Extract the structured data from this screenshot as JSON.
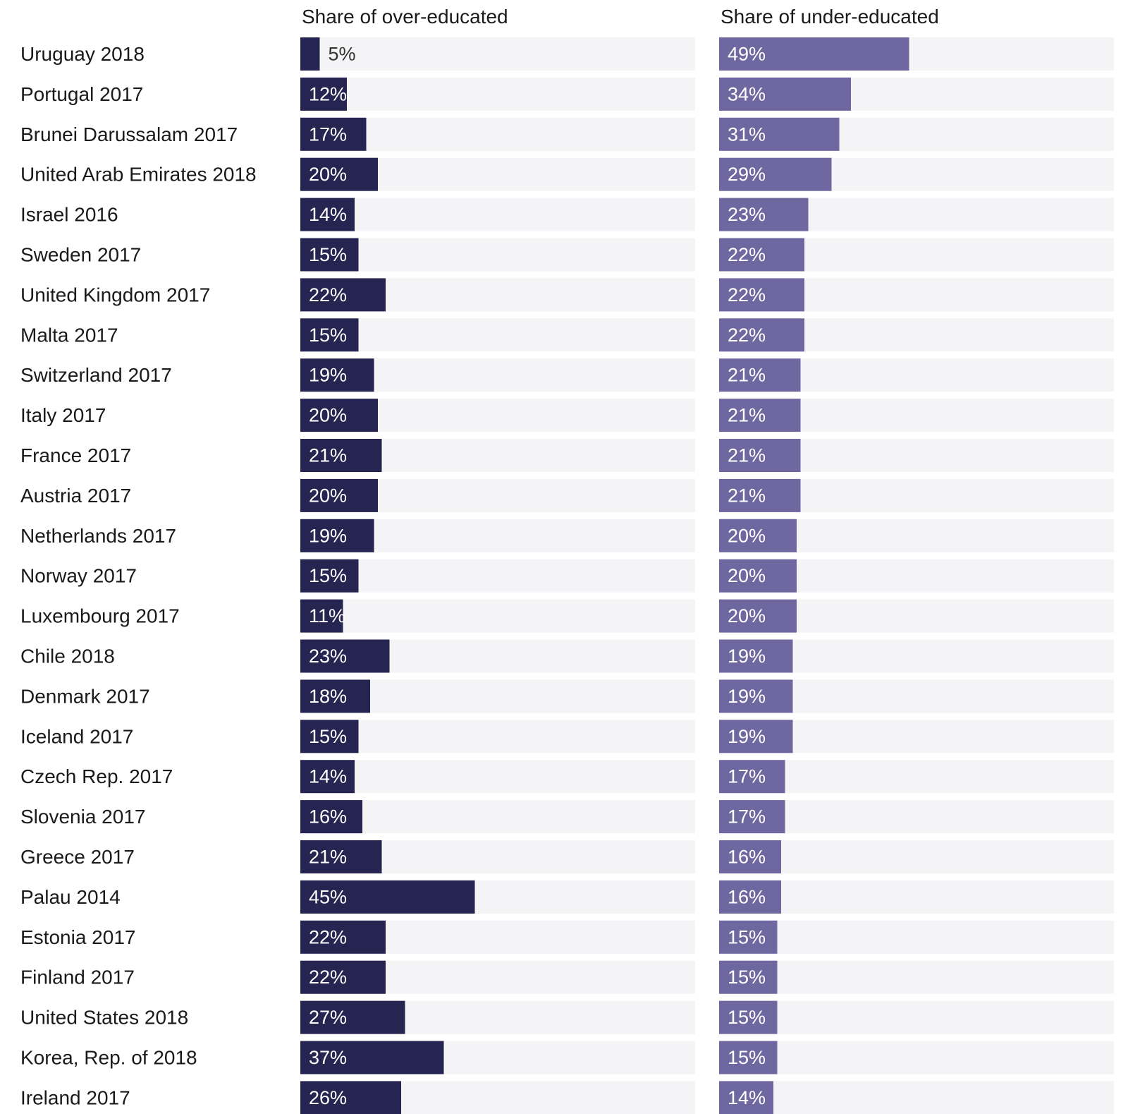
{
  "chart_data": {
    "type": "bar",
    "orientation": "horizontal",
    "xlim": [
      0,
      100
    ],
    "series": [
      {
        "name": "Share of over-educated",
        "color": "#262450",
        "label_suffix": "%",
        "values": [
          5,
          12,
          17,
          20,
          14,
          15,
          22,
          15,
          19,
          20,
          21,
          20,
          19,
          15,
          11,
          23,
          18,
          15,
          14,
          16,
          21,
          45,
          22,
          22,
          27,
          37,
          26
        ]
      },
      {
        "name": "Share of under-educated",
        "color": "#6e67a0",
        "label_suffix": "%",
        "values": [
          49,
          34,
          31,
          29,
          23,
          22,
          22,
          22,
          21,
          21,
          21,
          21,
          20,
          20,
          20,
          19,
          19,
          19,
          17,
          17,
          16,
          16,
          15,
          15,
          15,
          15,
          14
        ]
      }
    ],
    "categories": [
      "Uruguay 2018",
      "Portugal 2017",
      "Brunei Darussalam 2017",
      "United Arab Emirates 2018",
      "Israel 2016",
      "Sweden 2017",
      "United Kingdom 2017",
      "Malta 2017",
      "Switzerland 2017",
      "Italy 2017",
      "France 2017",
      "Austria 2017",
      "Netherlands 2017",
      "Norway 2017",
      "Luxembourg 2017",
      "Chile 2018",
      "Denmark 2017",
      "Iceland 2017",
      "Czech Rep. 2017",
      "Slovenia 2017",
      "Greece 2017",
      "Palau 2014",
      "Estonia 2017",
      "Finland 2017",
      "United States 2018",
      "Korea, Rep. of 2018",
      "Ireland 2017"
    ],
    "track_color": "#f4f4f6"
  }
}
